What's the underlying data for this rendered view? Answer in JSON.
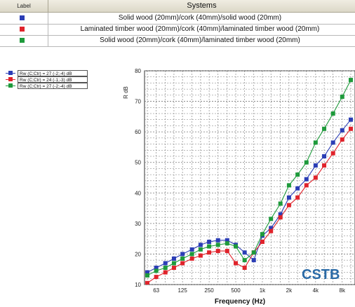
{
  "table": {
    "label_header": "Label",
    "systems_header": "Systems",
    "rows": [
      {
        "text": "Solid wood (20mm)/cork (40mm)/solid wood (20mm)",
        "color": "#2b3db5"
      },
      {
        "text": "Laminated timber wood (20mm)/cork (40mm)/laminated timber wood (20mm)",
        "color": "#e0232b"
      },
      {
        "text": "Solid wood (20mm)/cork (40mm)/laminated timber wood (20mm)",
        "color": "#1e9a3b"
      }
    ]
  },
  "legend": [
    {
      "text": "Rw (C;Ctr) = 27 (-2;-4) dB"
    },
    {
      "text": "Rw (C;Ctr) = 24 (-1;-3) dB"
    },
    {
      "text": "Rw (C;Ctr) = 27 (-2;-4) dB"
    }
  ],
  "logo": {
    "text": "CSTB"
  },
  "chart_data": {
    "type": "line",
    "xlabel": "Frequency (Hz)",
    "ylabel": "R dB",
    "x_scale": "log",
    "ylim": [
      10,
      80
    ],
    "yticks": [
      10,
      20,
      30,
      40,
      50,
      60,
      70,
      80
    ],
    "xtick_labels": [
      "63",
      "125",
      "250",
      "500",
      "1k",
      "2k",
      "4k",
      "8k"
    ],
    "xtick_values": [
      63,
      125,
      250,
      500,
      1000,
      2000,
      4000,
      8000
    ],
    "grid": true,
    "x": [
      50,
      63,
      80,
      100,
      125,
      160,
      200,
      250,
      315,
      400,
      500,
      630,
      800,
      1000,
      1250,
      1600,
      2000,
      2500,
      3150,
      4000,
      5000,
      6300,
      8000,
      10000
    ],
    "series": [
      {
        "color": "#2b3db5",
        "values": [
          14,
          15.5,
          17,
          18.5,
          20,
          21.5,
          23,
          24,
          24.5,
          24.5,
          23,
          20.5,
          18,
          26,
          28.5,
          33,
          38.5,
          41.5,
          44.5,
          49,
          52,
          56.5,
          60.5,
          64
        ]
      },
      {
        "color": "#e0232b",
        "values": [
          10.5,
          12.5,
          14,
          15.5,
          17,
          18.5,
          19.5,
          20.5,
          21,
          21,
          17,
          15.5,
          20.5,
          24,
          27.5,
          32,
          36,
          38.5,
          42.5,
          45,
          49,
          53,
          57.5,
          61
        ]
      },
      {
        "color": "#1e9a3b",
        "values": [
          13,
          14.5,
          15.5,
          17,
          18.5,
          20,
          21.5,
          22.5,
          23,
          23.5,
          22.5,
          18,
          20.5,
          26.5,
          31.5,
          36.5,
          42.5,
          46,
          50,
          56.5,
          61,
          66,
          71.5,
          77
        ]
      }
    ]
  }
}
